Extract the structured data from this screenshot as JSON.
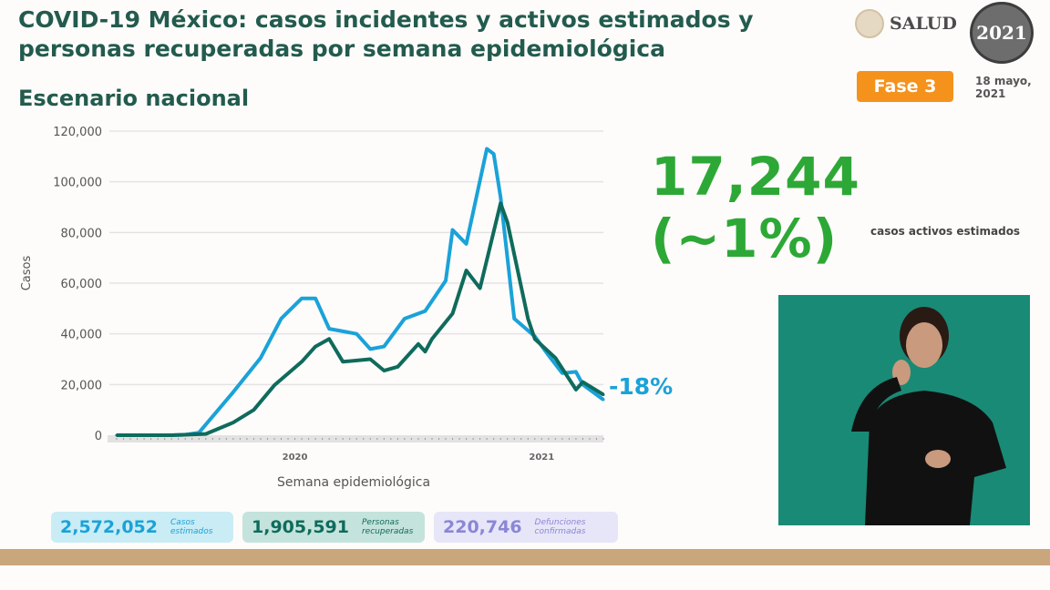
{
  "header": {
    "title": "COVID-19 México: casos incidentes y activos estimados y personas recuperadas por semana epidemiológica",
    "subtitle": "Escenario nacional",
    "logo_text": "SALUD",
    "badge_year": "2021",
    "phase": "Fase 3",
    "date": "18 mayo, 2021"
  },
  "highlight": {
    "value": "17,244 (~1%)",
    "caption": "casos activos estimados",
    "change": "-18%"
  },
  "summary": [
    {
      "value": "2,572,052",
      "label": "Casos estimados",
      "color": "#1aa2d9",
      "bg": "#c9ecf5"
    },
    {
      "value": "1,905,591",
      "label": "Personas recuperadas",
      "color": "#0f6b5c",
      "bg": "#c4e3dc"
    },
    {
      "value": "220,746",
      "label": "Defunciones confirmadas",
      "color": "#8b86d6",
      "bg": "#e6e6f8"
    }
  ],
  "colors": {
    "title": "#235b4e",
    "accent_green": "#2da836",
    "phase": "#f5921c",
    "interpreter_bg": "#198a75"
  },
  "chart_data": {
    "type": "line",
    "xlabel": "Semana epidemiológica",
    "ylabel": "Casos",
    "ylim": [
      0,
      120000
    ],
    "yticks": [
      "0",
      "20,000",
      "40,000",
      "60,000",
      "80,000",
      "100,000",
      "120,000"
    ],
    "xtick_labels": [
      {
        "label": "2020",
        "week": 27
      },
      {
        "label": "2021",
        "week": 63
      }
    ],
    "grid": true,
    "series": [
      {
        "color": "#1aa2d9",
        "x": [
          1,
          5,
          9,
          11,
          13,
          18,
          22,
          25,
          28,
          30,
          32,
          36,
          38,
          40,
          43,
          46,
          49,
          50,
          52,
          55,
          56,
          57,
          59,
          62,
          64,
          66,
          68,
          69,
          72
        ],
        "y": [
          0,
          0,
          0,
          200,
          1000,
          17000,
          30500,
          46000,
          54000,
          54000,
          42000,
          40000,
          34000,
          35000,
          46000,
          49000,
          61000,
          81000,
          75500,
          113000,
          111000,
          94000,
          46000,
          39000,
          31500,
          24500,
          25000,
          20000,
          14000
        ]
      },
      {
        "color": "#0f6b5c",
        "x": [
          1,
          9,
          14,
          18,
          21,
          24,
          28,
          30,
          32,
          34,
          38,
          40,
          42,
          45,
          46,
          47,
          50,
          52,
          54,
          57,
          58,
          61,
          62,
          65,
          68,
          69,
          72
        ],
        "y": [
          0,
          0,
          500,
          5000,
          10000,
          19700,
          29000,
          35000,
          38000,
          29000,
          30000,
          25500,
          27000,
          36000,
          33000,
          38000,
          48000,
          65000,
          58000,
          91500,
          84000,
          46000,
          38000,
          30500,
          18000,
          21000,
          16000
        ]
      }
    ]
  }
}
